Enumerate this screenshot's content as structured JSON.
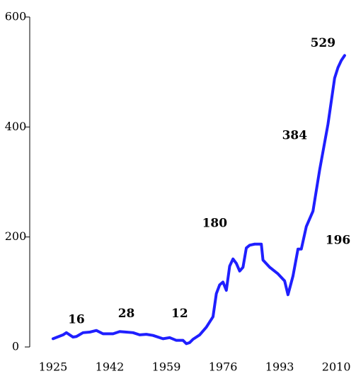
{
  "chart_data": {
    "type": "line",
    "x": [
      1925,
      1928,
      1929,
      1931,
      1932,
      1934,
      1936,
      1938,
      1940,
      1943,
      1945,
      1947,
      1949,
      1951,
      1953,
      1955,
      1958,
      1960,
      1962,
      1964,
      1965,
      1966,
      1967,
      1969,
      1971,
      1973,
      1974,
      1975,
      1976,
      1977,
      1978,
      1979,
      1980,
      1981,
      1982,
      1983,
      1984,
      1985.5,
      1987.5,
      1988,
      1990,
      1992.5,
      1994.5,
      1995.5,
      1997,
      1998.5,
      1999.5,
      2001,
      2003,
      2005,
      2007.5,
      2009.5,
      2010.5,
      2011.5,
      2012.5
    ],
    "series": [
      {
        "color": "#1f1fff",
        "values": [
          15,
          22,
          26,
          18,
          19,
          26,
          27,
          30,
          24,
          24,
          28,
          27,
          26,
          22,
          23,
          21,
          15,
          17,
          12,
          12,
          6,
          8,
          14,
          22,
          36,
          55,
          97,
          113,
          118,
          103,
          147,
          160,
          152,
          138,
          145,
          180,
          185,
          187,
          187,
          158,
          145,
          133,
          120,
          95,
          129,
          178,
          178,
          219,
          247,
          322,
          405,
          489,
          508,
          521,
          530
        ]
      }
    ],
    "xlim": [
      1918,
      2014
    ],
    "xticks": [
      1925,
      1942,
      1959,
      1976,
      1993,
      2010
    ],
    "ylim": [
      0,
      600
    ],
    "yticks": [
      0,
      200,
      400,
      600
    ],
    "annotations": [
      {
        "text": "16",
        "x": 1932,
        "y": 49
      },
      {
        "text": "28",
        "x": 1947,
        "y": 60
      },
      {
        "text": "12",
        "x": 1963,
        "y": 60
      },
      {
        "text": "180",
        "x": 1973.5,
        "y": 224
      },
      {
        "text": "384",
        "x": 1997.5,
        "y": 384
      },
      {
        "text": "196",
        "x": 2010.5,
        "y": 193
      },
      {
        "text": "529",
        "x": 2006,
        "y": 552
      }
    ]
  }
}
